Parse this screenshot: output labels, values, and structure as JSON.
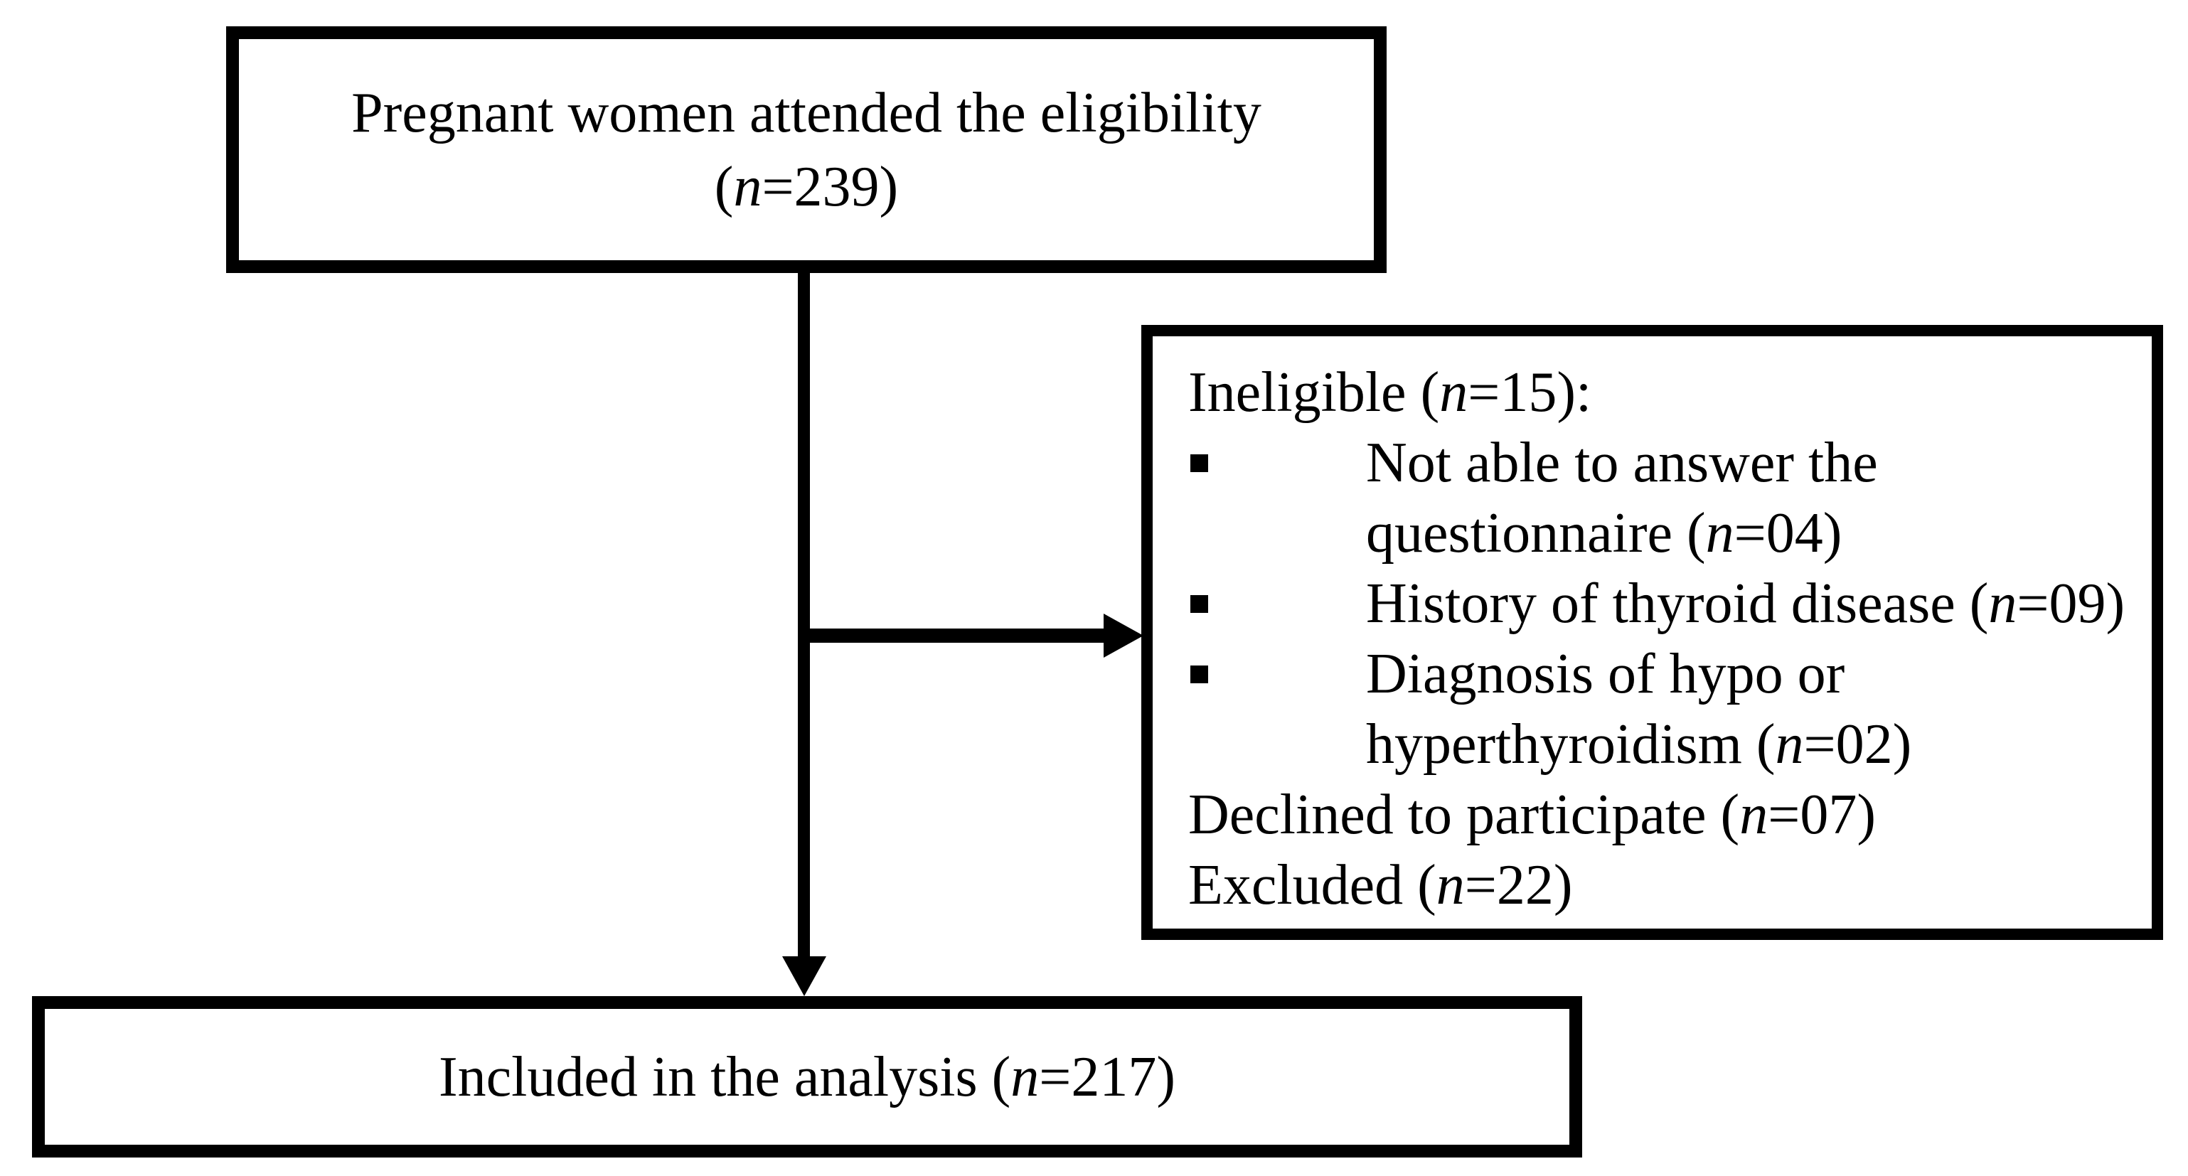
{
  "diagram": {
    "background_color": "#ffffff",
    "line_color": "#000000",
    "top_box": {
      "lines": [
        {
          "parts": [
            {
              "text": "Pregnant women attended the eligibility"
            }
          ]
        },
        {
          "parts": [
            {
              "text": "("
            },
            {
              "text": "n",
              "italic": true
            },
            {
              "text": "=239)"
            }
          ]
        }
      ]
    },
    "ineligible_box": {
      "title": {
        "parts": [
          {
            "text": "Ineligible ("
          },
          {
            "text": "n",
            "italic": true
          },
          {
            "text": "=15):"
          }
        ]
      },
      "bullets": [
        {
          "parts": [
            {
              "text": "Not able to answer the questionnaire ("
            },
            {
              "text": "n",
              "italic": true
            },
            {
              "text": "=04)"
            }
          ]
        },
        {
          "parts": [
            {
              "text": "History of thyroid disease ("
            },
            {
              "text": "n",
              "italic": true
            },
            {
              "text": "=09)"
            }
          ]
        },
        {
          "parts": [
            {
              "text": "Diagnosis of hypo or hyperthyroidism ("
            },
            {
              "text": "n",
              "italic": true
            },
            {
              "text": "=02)"
            }
          ]
        }
      ],
      "footer_lines": [
        {
          "parts": [
            {
              "text": "Declined to participate ("
            },
            {
              "text": "n",
              "italic": true
            },
            {
              "text": "=07)"
            }
          ]
        },
        {
          "parts": [
            {
              "text": "Excluded ("
            },
            {
              "text": "n",
              "italic": true
            },
            {
              "text": "=22)"
            }
          ]
        }
      ]
    },
    "included_box": {
      "lines": [
        {
          "parts": [
            {
              "text": "Included in the analysis ("
            },
            {
              "text": "n",
              "italic": true
            },
            {
              "text": "=217)"
            }
          ]
        }
      ]
    }
  }
}
